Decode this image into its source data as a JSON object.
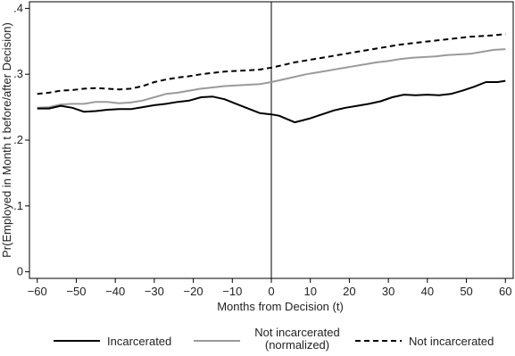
{
  "chart_data": {
    "type": "line",
    "title": "",
    "xlabel": "Months from Decision (t)",
    "ylabel": "Pr(Employed in Month t before/after Decision)",
    "xlim": [
      -62,
      62
    ],
    "ylim": [
      -0.01,
      0.41
    ],
    "x_ticks": [
      -60,
      -50,
      -40,
      -30,
      -20,
      -10,
      0,
      10,
      20,
      30,
      40,
      50,
      60
    ],
    "x_tick_labels": [
      "−60",
      "−50",
      "−40",
      "−30",
      "−20",
      "−10",
      "0",
      "10",
      "20",
      "30",
      "40",
      "50",
      "60"
    ],
    "y_ticks": [
      0,
      0.1,
      0.2,
      0.3,
      0.4
    ],
    "y_tick_labels": [
      "0",
      ".1",
      ".2",
      ".3",
      ".4"
    ],
    "vline_x": 0,
    "grid": false,
    "legend_position": "bottom",
    "series": [
      {
        "name": "Incarcerated",
        "color": "#000000",
        "dash": "solid",
        "points": [
          [
            -60,
            0.248
          ],
          [
            -57,
            0.248
          ],
          [
            -54,
            0.252
          ],
          [
            -51,
            0.249
          ],
          [
            -48,
            0.243
          ],
          [
            -45,
            0.244
          ],
          [
            -42,
            0.246
          ],
          [
            -39,
            0.247
          ],
          [
            -36,
            0.247
          ],
          [
            -33,
            0.25
          ],
          [
            -30,
            0.253
          ],
          [
            -27,
            0.255
          ],
          [
            -24,
            0.258
          ],
          [
            -21,
            0.26
          ],
          [
            -18,
            0.265
          ],
          [
            -15,
            0.266
          ],
          [
            -12,
            0.262
          ],
          [
            -9,
            0.255
          ],
          [
            -6,
            0.248
          ],
          [
            -3,
            0.241
          ],
          [
            0,
            0.239
          ],
          [
            2,
            0.237
          ],
          [
            4,
            0.232
          ],
          [
            6,
            0.227
          ],
          [
            8,
            0.23
          ],
          [
            10,
            0.233
          ],
          [
            13,
            0.239
          ],
          [
            16,
            0.245
          ],
          [
            19,
            0.249
          ],
          [
            22,
            0.252
          ],
          [
            25,
            0.255
          ],
          [
            28,
            0.259
          ],
          [
            31,
            0.265
          ],
          [
            34,
            0.269
          ],
          [
            37,
            0.268
          ],
          [
            40,
            0.269
          ],
          [
            43,
            0.268
          ],
          [
            46,
            0.27
          ],
          [
            49,
            0.275
          ],
          [
            52,
            0.281
          ],
          [
            55,
            0.288
          ],
          [
            58,
            0.288
          ],
          [
            60,
            0.29
          ]
        ]
      },
      {
        "name": "Not incarcerated (normalized)",
        "color": "#9a9a9a",
        "dash": "solid",
        "points": [
          [
            -60,
            0.249
          ],
          [
            -57,
            0.25
          ],
          [
            -54,
            0.254
          ],
          [
            -51,
            0.255
          ],
          [
            -48,
            0.255
          ],
          [
            -45,
            0.258
          ],
          [
            -42,
            0.258
          ],
          [
            -39,
            0.256
          ],
          [
            -36,
            0.257
          ],
          [
            -33,
            0.26
          ],
          [
            -30,
            0.265
          ],
          [
            -27,
            0.27
          ],
          [
            -24,
            0.272
          ],
          [
            -21,
            0.275
          ],
          [
            -18,
            0.278
          ],
          [
            -15,
            0.28
          ],
          [
            -12,
            0.282
          ],
          [
            -9,
            0.283
          ],
          [
            -6,
            0.284
          ],
          [
            -3,
            0.285
          ],
          [
            0,
            0.288
          ],
          [
            3,
            0.292
          ],
          [
            6,
            0.296
          ],
          [
            9,
            0.3
          ],
          [
            12,
            0.303
          ],
          [
            15,
            0.306
          ],
          [
            18,
            0.309
          ],
          [
            21,
            0.312
          ],
          [
            24,
            0.315
          ],
          [
            27,
            0.318
          ],
          [
            30,
            0.32
          ],
          [
            33,
            0.323
          ],
          [
            36,
            0.325
          ],
          [
            39,
            0.326
          ],
          [
            42,
            0.327
          ],
          [
            45,
            0.329
          ],
          [
            48,
            0.33
          ],
          [
            51,
            0.331
          ],
          [
            54,
            0.334
          ],
          [
            57,
            0.337
          ],
          [
            60,
            0.338
          ]
        ]
      },
      {
        "name": "Not incarcerated",
        "color": "#000000",
        "dash": "dashed",
        "points": [
          [
            -60,
            0.27
          ],
          [
            -57,
            0.272
          ],
          [
            -54,
            0.275
          ],
          [
            -51,
            0.276
          ],
          [
            -48,
            0.278
          ],
          [
            -45,
            0.279
          ],
          [
            -42,
            0.278
          ],
          [
            -39,
            0.277
          ],
          [
            -36,
            0.278
          ],
          [
            -33,
            0.282
          ],
          [
            -30,
            0.288
          ],
          [
            -27,
            0.292
          ],
          [
            -24,
            0.295
          ],
          [
            -21,
            0.297
          ],
          [
            -18,
            0.3
          ],
          [
            -15,
            0.302
          ],
          [
            -12,
            0.304
          ],
          [
            -9,
            0.305
          ],
          [
            -6,
            0.306
          ],
          [
            -3,
            0.307
          ],
          [
            0,
            0.31
          ],
          [
            3,
            0.314
          ],
          [
            6,
            0.318
          ],
          [
            9,
            0.321
          ],
          [
            12,
            0.324
          ],
          [
            15,
            0.327
          ],
          [
            18,
            0.33
          ],
          [
            21,
            0.333
          ],
          [
            24,
            0.336
          ],
          [
            27,
            0.339
          ],
          [
            30,
            0.342
          ],
          [
            33,
            0.345
          ],
          [
            36,
            0.347
          ],
          [
            39,
            0.349
          ],
          [
            42,
            0.351
          ],
          [
            45,
            0.353
          ],
          [
            48,
            0.355
          ],
          [
            51,
            0.357
          ],
          [
            54,
            0.358
          ],
          [
            57,
            0.359
          ],
          [
            60,
            0.361
          ]
        ]
      }
    ],
    "legend": [
      {
        "label": "Incarcerated",
        "series_index": 0
      },
      {
        "label": "Not incarcerated (normalized)",
        "label_lines": [
          "Not incarcerated",
          "(normalized)"
        ],
        "series_index": 1
      },
      {
        "label": "Not incarcerated",
        "series_index": 2
      }
    ]
  }
}
